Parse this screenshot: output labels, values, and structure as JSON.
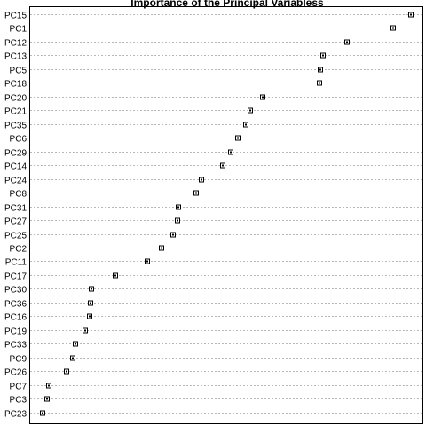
{
  "chart_data": {
    "type": "scatter",
    "title": "Importance of the Principal Variabless",
    "xlabel": "",
    "ylabel": "",
    "xlim": [
      0,
      1
    ],
    "grid": true,
    "legend": "none",
    "marker": "boxed-dot",
    "categories": [
      "PC15",
      "PC1",
      "PC12",
      "PC13",
      "PC5",
      "PC18",
      "PC20",
      "PC21",
      "PC35",
      "PC6",
      "PC29",
      "PC14",
      "PC24",
      "PC8",
      "PC31",
      "PC27",
      "PC25",
      "PC2",
      "PC11",
      "PC17",
      "PC30",
      "PC36",
      "PC16",
      "PC19",
      "PC33",
      "PC9",
      "PC26",
      "PC7",
      "PC3",
      "PC23"
    ],
    "values": [
      1.0,
      0.951,
      0.826,
      0.762,
      0.755,
      0.753,
      0.597,
      0.565,
      0.553,
      0.531,
      0.511,
      0.49,
      0.431,
      0.418,
      0.368,
      0.366,
      0.354,
      0.324,
      0.285,
      0.197,
      0.132,
      0.13,
      0.128,
      0.116,
      0.09,
      0.083,
      0.065,
      0.016,
      0.013,
      0.0
    ]
  }
}
